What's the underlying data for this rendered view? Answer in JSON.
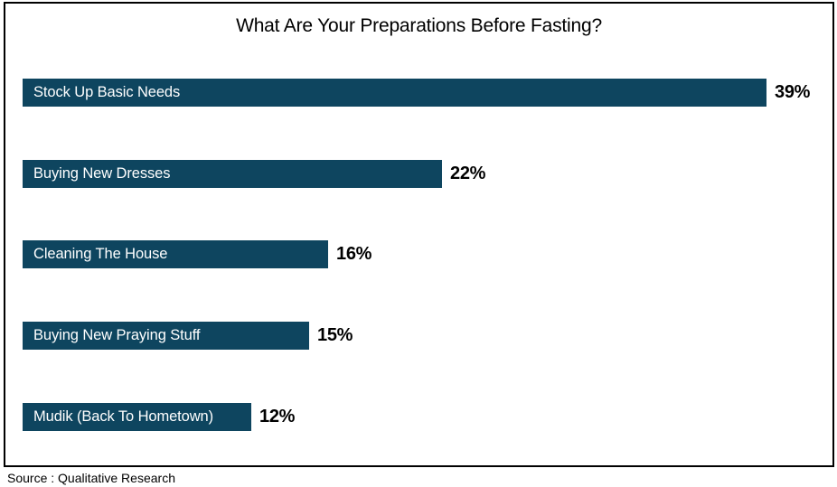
{
  "page": {
    "title": "What Are Your Preparations Before Fasting?",
    "source_note": "Source : Qualitative Research"
  },
  "colors": {
    "bar_fill": "#0E455F",
    "bar_label_text": "#FFFFFF",
    "value_label_text": "#000000",
    "frame_border": "#000000",
    "background": "#FFFFFF"
  },
  "chart_data": {
    "type": "bar",
    "orientation": "horizontal",
    "title": "What Are Your Preparations Before Fasting?",
    "categories": [
      "Stock Up Basic Needs",
      "Buying New Dresses",
      "Cleaning The House",
      "Buying New Praying Stuff",
      "Mudik (Back To Hometown)"
    ],
    "values": [
      39,
      22,
      16,
      15,
      12
    ],
    "unit": "%",
    "value_labels": [
      "39%",
      "22%",
      "16%",
      "15%",
      "12%"
    ],
    "xlim": [
      0,
      42.5
    ],
    "grid": false,
    "legend": false,
    "axes_visible": false,
    "source": "Source : Qualitative Research"
  }
}
